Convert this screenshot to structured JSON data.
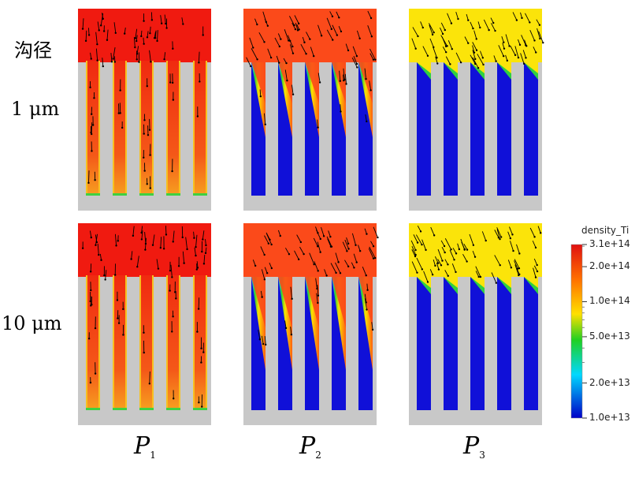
{
  "row_labels": [
    {
      "line1": "沟径",
      "line2": "1 μm"
    },
    {
      "line1": "",
      "line2": "10 μm"
    }
  ],
  "column_labels": [
    {
      "main": "P",
      "sub": "1"
    },
    {
      "main": "P",
      "sub": "2"
    },
    {
      "main": "P",
      "sub": "3"
    }
  ],
  "colorbar": {
    "title": "density_Ti",
    "scale": "log",
    "min": 10000000000000.0,
    "max": 310000000000000.0,
    "tick_labels": [
      "3.1e+14",
      "2.0e+14",
      "1.0e+14",
      "5.0e+13",
      "2.0e+13",
      "1.0e+13"
    ],
    "tick_values": [
      310000000000000.0,
      200000000000000.0,
      100000000000000.0,
      50000000000000.0,
      20000000000000.0,
      10000000000000.0
    ],
    "colormap": [
      "#0000c8",
      "#00d8ff",
      "#20d020",
      "#ffe800",
      "#ff8000",
      "#f01010"
    ]
  },
  "chart_data": {
    "type": "heatmap",
    "title": "",
    "field": "density_Ti",
    "panels": [
      {
        "row": "1 μm",
        "column": "P1",
        "bulk_color": "#f01a10",
        "trench_fill": "full",
        "trench_color": "#f43410"
      },
      {
        "row": "1 μm",
        "column": "P2",
        "bulk_color": "#fb4a1a",
        "trench_fill": "partial",
        "trench_color": "#1010d8"
      },
      {
        "row": "1 μm",
        "column": "P3",
        "bulk_color": "#fbe40a",
        "trench_fill": "top",
        "trench_color": "#1010d8"
      },
      {
        "row": "10 μm",
        "column": "P1",
        "bulk_color": "#f01a10",
        "trench_fill": "full",
        "trench_color": "#f43410"
      },
      {
        "row": "10 μm",
        "column": "P2",
        "bulk_color": "#fb4a1a",
        "trench_fill": "partial",
        "trench_color": "#1010d8"
      },
      {
        "row": "10 μm",
        "column": "P3",
        "bulk_color": "#fbe40a",
        "trench_fill": "top",
        "trench_color": "#1010d8"
      }
    ],
    "colors": {
      "substrate": "#c8c8c8",
      "empty": "#1010d8",
      "arrow": "#000000"
    }
  }
}
